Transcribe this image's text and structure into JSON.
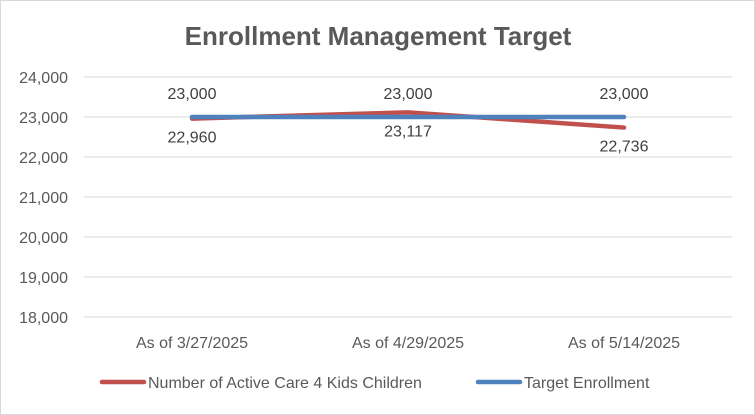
{
  "chart_data": {
    "type": "line",
    "title": "Enrollment Management Target",
    "categories": [
      "As of 3/27/2025",
      "As of 4/29/2025",
      "As of 5/14/2025"
    ],
    "ylim": [
      18000,
      24000
    ],
    "yticks": [
      18000,
      19000,
      20000,
      21000,
      22000,
      23000,
      24000
    ],
    "grid": true,
    "legend_position": "bottom",
    "series": [
      {
        "name": "Number of Active Care 4 Kids Children",
        "values": [
          22960,
          23117,
          22736
        ],
        "color": "#c0504d",
        "labels": [
          "22,960",
          "23,117",
          "22,736"
        ]
      },
      {
        "name": "Target Enrollment",
        "values": [
          23000,
          23000,
          23000
        ],
        "color": "#4f81bd",
        "labels": [
          "23,000",
          "23,000",
          "23,000"
        ]
      }
    ]
  }
}
